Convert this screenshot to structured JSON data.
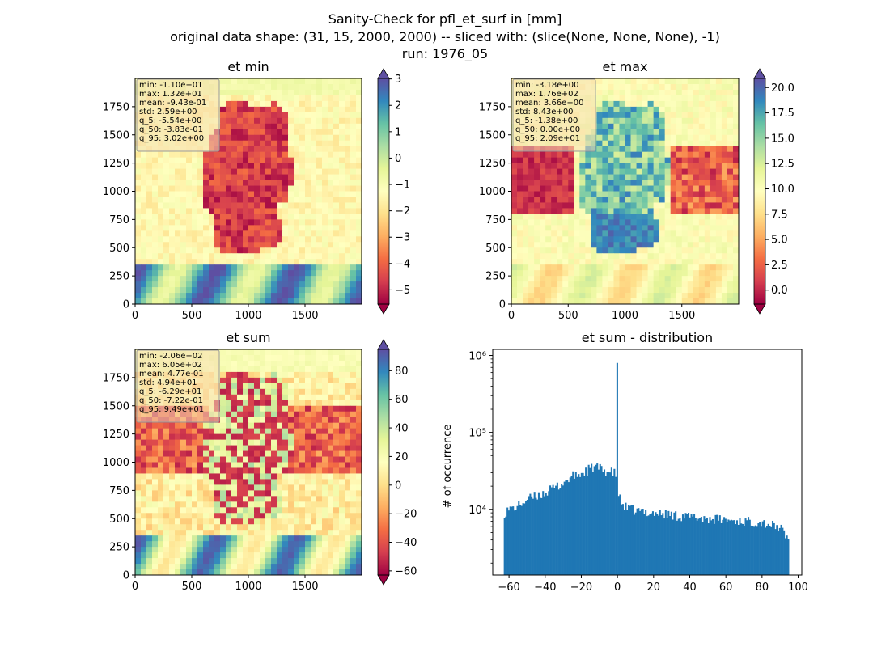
{
  "figure": {
    "title_lines": [
      "Sanity-Check for pfl_et_surf in [mm]",
      "original data shape: (31, 15, 2000, 2000) -- sliced with: (slice(None, None, None), -1)",
      "run: 1976_05"
    ]
  },
  "chart_data": [
    {
      "type": "heatmap",
      "title": "et min",
      "xlim": [
        0,
        2000
      ],
      "ylim": [
        0,
        2000
      ],
      "x_ticks": [
        "0",
        "500",
        "1000",
        "1500"
      ],
      "y_ticks": [
        "0",
        "250",
        "500",
        "750",
        "1000",
        "1250",
        "1500",
        "1750"
      ],
      "colormap": "Spectral",
      "colorbar": {
        "range": [
          -5.54,
          3.02
        ],
        "ticks": [
          "3",
          "2",
          "1",
          "0",
          "−1",
          "−2",
          "−3",
          "−4",
          "−5"
        ],
        "extend": "both"
      },
      "stats": [
        "min: -1.10e+01",
        "max: 1.32e+01",
        "mean: -9.43e-01",
        "std: 2.59e+00",
        "q_5: -5.54e+00",
        "q_50: -3.83e-01",
        "q_95: 3.02e+00"
      ]
    },
    {
      "type": "heatmap",
      "title": "et max",
      "xlim": [
        0,
        2000
      ],
      "ylim": [
        0,
        2000
      ],
      "x_ticks": [
        "0",
        "500",
        "1000",
        "1500"
      ],
      "y_ticks": [
        "0",
        "250",
        "500",
        "750",
        "1000",
        "1250",
        "1500",
        "1750"
      ],
      "colormap": "Spectral",
      "colorbar": {
        "range": [
          -1.38,
          20.9
        ],
        "ticks": [
          "20.0",
          "17.5",
          "15.0",
          "12.5",
          "10.0",
          "7.5",
          "5.0",
          "2.5",
          "0.0"
        ],
        "extend": "both"
      },
      "stats": [
        "min: -3.18e+00",
        "max: 1.76e+02",
        "mean: 3.66e+00",
        "std: 8.43e+00",
        "q_5: -1.38e+00",
        "q_50: 0.00e+00",
        "q_95: 2.09e+01"
      ]
    },
    {
      "type": "heatmap",
      "title": "et sum",
      "xlim": [
        0,
        2000
      ],
      "ylim": [
        0,
        2000
      ],
      "x_ticks": [
        "0",
        "500",
        "1000",
        "1500"
      ],
      "y_ticks": [
        "0",
        "250",
        "500",
        "750",
        "1000",
        "1250",
        "1500",
        "1750"
      ],
      "colormap": "Spectral",
      "colorbar": {
        "range": [
          -62.9,
          94.9
        ],
        "ticks": [
          "80",
          "60",
          "40",
          "20",
          "0",
          "−20",
          "−40",
          "−60"
        ],
        "extend": "both"
      },
      "stats": [
        "min: -2.06e+02",
        "max: 6.05e+02",
        "mean: 4.77e-01",
        "std: 4.94e+01",
        "q_5: -6.29e+01",
        "q_50: -7.22e-01",
        "q_95: 9.49e+01"
      ]
    },
    {
      "type": "bar",
      "title": "et sum - distribution",
      "ylabel": "# of occurrence",
      "xlabel": "",
      "yscale": "log",
      "xlim": [
        -69,
        102
      ],
      "ylim": [
        1400,
        1200000
      ],
      "x_ticks": [
        "−60",
        "−40",
        "−20",
        "0",
        "20",
        "40",
        "60",
        "80",
        "100"
      ],
      "y_ticks": [
        "10⁴",
        "10⁵",
        "10⁶"
      ],
      "bar_color": "#1f77b4",
      "bins": {
        "start": -62.9,
        "end": 94.9,
        "count": 200
      },
      "profile": {
        "x": [
          -62.9,
          -60,
          -55,
          -50,
          -45,
          -40,
          -35,
          -30,
          -25,
          -20,
          -15,
          -12,
          -10,
          -5,
          -2,
          -1,
          -0.5,
          0,
          0.5,
          1,
          2,
          5,
          10,
          20,
          30,
          40,
          50,
          60,
          70,
          80,
          90,
          94.9
        ],
        "y": [
          9000,
          10000,
          11000,
          13500,
          15000,
          16500,
          19000,
          22000,
          27000,
          29000,
          34000,
          36000,
          34000,
          31000,
          30000,
          28000,
          20000,
          800000,
          16500,
          15000,
          12000,
          10500,
          9600,
          9000,
          8500,
          8000,
          7600,
          7300,
          7000,
          6800,
          5800,
          4000
        ]
      }
    }
  ]
}
